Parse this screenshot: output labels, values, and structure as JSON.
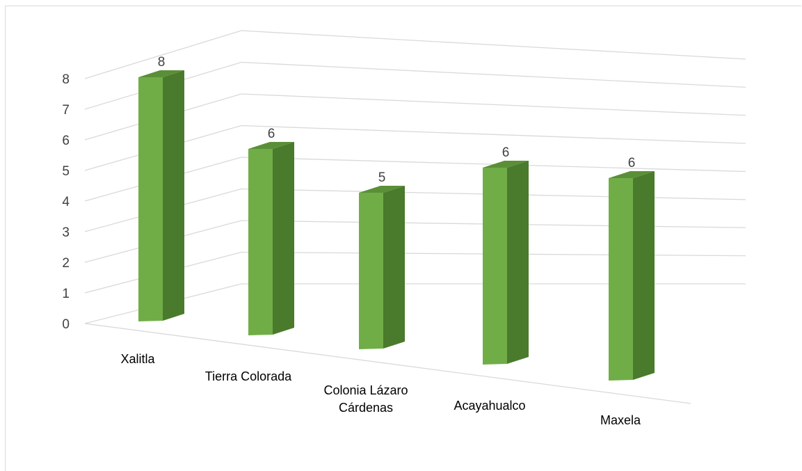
{
  "chart_data": {
    "type": "bar",
    "categories": [
      "Xalitla",
      "Tierra Colorada",
      "Colonia Lázaro Cárdenas",
      "Acayahualco",
      "Maxela"
    ],
    "category_label_lines": [
      [
        "Xalitla"
      ],
      [
        "Tierra Colorada"
      ],
      [
        "Colonia Lázaro",
        "Cárdenas"
      ],
      [
        "Acayahualco"
      ],
      [
        "Maxela"
      ]
    ],
    "values": [
      8,
      6,
      5,
      6,
      6
    ],
    "data_labels": [
      "8",
      "6",
      "5",
      "6",
      "6"
    ],
    "ylim": [
      0,
      8
    ],
    "yticks": [
      "0",
      "1",
      "2",
      "3",
      "4",
      "5",
      "6",
      "7",
      "8"
    ],
    "title": "",
    "xlabel": "",
    "ylabel": "",
    "grid": true,
    "style": "3d-column",
    "colors": {
      "bar_front": "#70ad47",
      "bar_side": "#4a7a2c",
      "bar_top": "#5b8f37",
      "grid": "#d9d9d9"
    }
  }
}
